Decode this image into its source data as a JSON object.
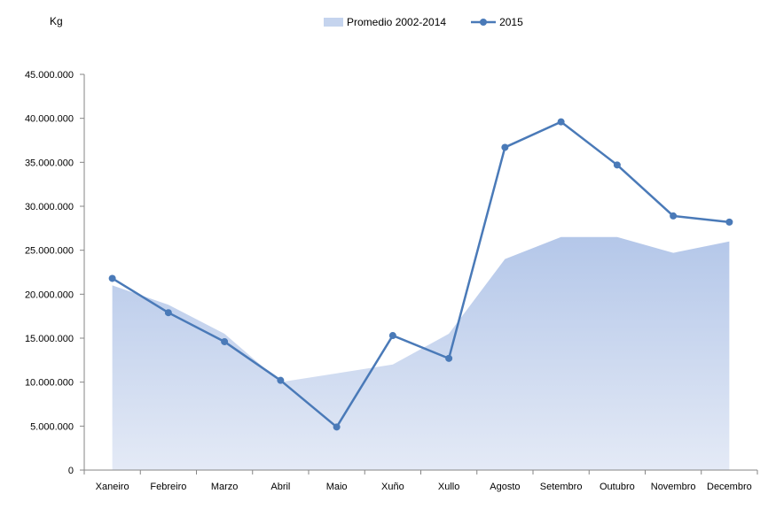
{
  "chart_data": {
    "type": "area",
    "ylabel": "Kg",
    "xlabel": "",
    "title": "",
    "ylim": [
      0,
      45000000
    ],
    "yticks": [
      0,
      5000000,
      10000000,
      15000000,
      20000000,
      25000000,
      30000000,
      35000000,
      40000000,
      45000000
    ],
    "ytick_labels": [
      "0",
      "5.000.000",
      "10.000.000",
      "15.000.000",
      "20.000.000",
      "25.000.000",
      "30.000.000",
      "35.000.000",
      "40.000.000",
      "45.000.000"
    ],
    "categories": [
      "Xaneiro",
      "Febreiro",
      "Marzo",
      "Abril",
      "Maio",
      "Xuño",
      "Xullo",
      "Agosto",
      "Setembro",
      "Outubro",
      "Novembro",
      "Decembro"
    ],
    "legend_position": "top",
    "grid": false,
    "series": [
      {
        "name": "Promedio 2002-2014",
        "type": "area",
        "color": "#b4c7e7",
        "values": [
          21000000,
          18800000,
          15500000,
          10000000,
          11000000,
          12000000,
          15500000,
          24000000,
          26500000,
          26500000,
          24700000,
          26000000
        ]
      },
      {
        "name": "2015",
        "type": "line",
        "color": "#4a7ab8",
        "values": [
          21800000,
          17900000,
          14600000,
          10200000,
          4900000,
          15300000,
          12700000,
          36700000,
          39600000,
          34700000,
          28900000,
          28200000
        ]
      }
    ]
  }
}
